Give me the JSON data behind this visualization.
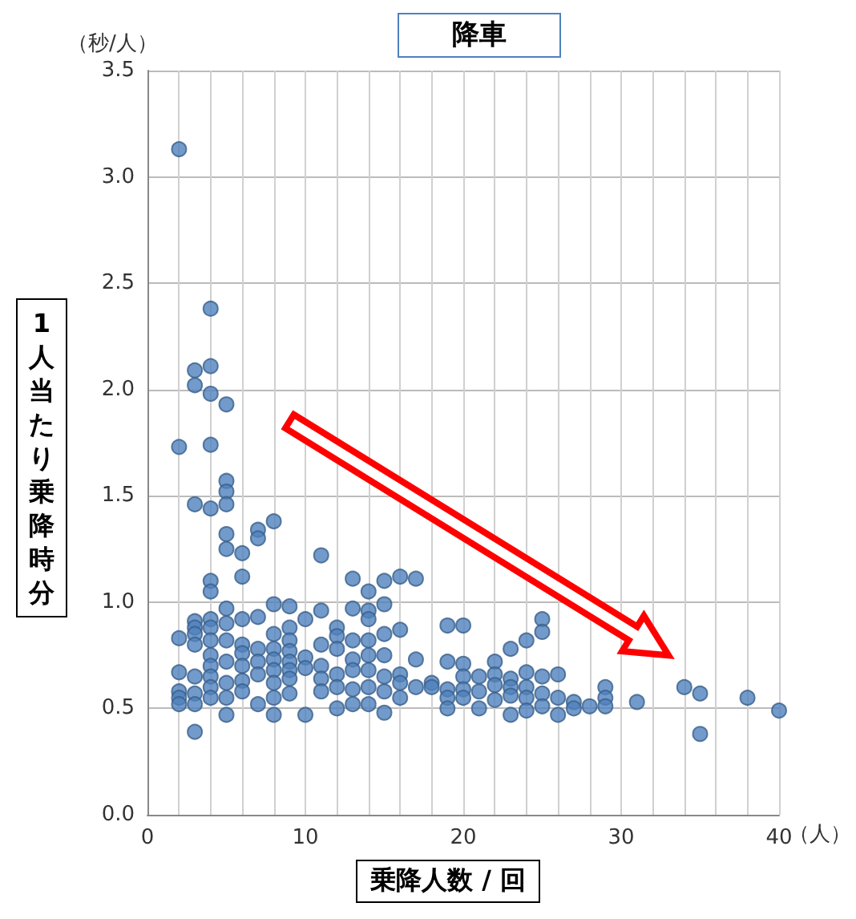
{
  "chart_data": {
    "type": "scatter",
    "title": "降車",
    "xlabel": "乗降人数 / 回",
    "ylabel": "1人当たり乗降時分",
    "annotations": [
      "（秒/人）",
      "（人）"
    ],
    "x": [
      2,
      2,
      2,
      2,
      2,
      2,
      2,
      3,
      3,
      3,
      3,
      3,
      3,
      3,
      3,
      3,
      3,
      3,
      4,
      4,
      4,
      4,
      4,
      4,
      4,
      4,
      4,
      4,
      4,
      4,
      4,
      4,
      4,
      5,
      5,
      5,
      5,
      5,
      5,
      5,
      5,
      5,
      5,
      5,
      5,
      5,
      6,
      6,
      6,
      6,
      6,
      6,
      6,
      6,
      7,
      7,
      7,
      7,
      7,
      7,
      7,
      8,
      8,
      8,
      8,
      8,
      8,
      8,
      8,
      8,
      9,
      9,
      9,
      9,
      9,
      9,
      9,
      9,
      10,
      10,
      10,
      10,
      11,
      11,
      11,
      11,
      11,
      11,
      12,
      12,
      12,
      12,
      12,
      12,
      13,
      13,
      13,
      13,
      13,
      13,
      13,
      14,
      14,
      14,
      14,
      14,
      14,
      14,
      14,
      15,
      15,
      15,
      15,
      15,
      15,
      15,
      16,
      16,
      16,
      16,
      16,
      17,
      17,
      17,
      18,
      18,
      19,
      19,
      19,
      19,
      19,
      20,
      20,
      20,
      20,
      20,
      21,
      21,
      21,
      22,
      22,
      22,
      22,
      23,
      23,
      23,
      23,
      23,
      24,
      24,
      24,
      24,
      24,
      25,
      25,
      25,
      25,
      25,
      26,
      26,
      26,
      27,
      27,
      28,
      29,
      29,
      29,
      31,
      34,
      35,
      35,
      38,
      40
    ],
    "values": [
      3.13,
      1.73,
      0.83,
      0.67,
      0.58,
      0.55,
      0.52,
      2.09,
      2.02,
      1.46,
      0.91,
      0.88,
      0.85,
      0.8,
      0.65,
      0.57,
      0.52,
      0.39,
      2.38,
      2.11,
      1.98,
      1.74,
      1.44,
      1.1,
      1.05,
      0.92,
      0.88,
      0.82,
      0.75,
      0.7,
      0.65,
      0.6,
      0.55,
      1.93,
      1.57,
      1.52,
      1.46,
      1.32,
      1.25,
      0.97,
      0.9,
      0.82,
      0.72,
      0.62,
      0.55,
      0.47,
      1.23,
      1.12,
      0.92,
      0.8,
      0.76,
      0.7,
      0.63,
      0.58,
      1.34,
      1.3,
      0.93,
      0.78,
      0.72,
      0.66,
      0.52,
      1.38,
      0.99,
      0.85,
      0.78,
      0.73,
      0.68,
      0.62,
      0.55,
      0.47,
      0.98,
      0.88,
      0.82,
      0.77,
      0.72,
      0.68,
      0.64,
      0.57,
      0.92,
      0.74,
      0.69,
      0.47,
      1.22,
      0.96,
      0.8,
      0.7,
      0.64,
      0.58,
      0.88,
      0.84,
      0.78,
      0.66,
      0.6,
      0.5,
      1.11,
      0.97,
      0.82,
      0.73,
      0.68,
      0.59,
      0.52,
      1.05,
      0.96,
      0.92,
      0.82,
      0.75,
      0.68,
      0.6,
      0.52,
      1.1,
      0.99,
      0.85,
      0.75,
      0.65,
      0.58,
      0.48,
      1.12,
      0.87,
      0.66,
      0.62,
      0.55,
      1.11,
      0.73,
      0.6,
      0.62,
      0.6,
      0.89,
      0.72,
      0.59,
      0.55,
      0.5,
      0.89,
      0.71,
      0.65,
      0.59,
      0.55,
      0.65,
      0.58,
      0.5,
      0.72,
      0.66,
      0.61,
      0.54,
      0.78,
      0.64,
      0.6,
      0.56,
      0.47,
      0.82,
      0.67,
      0.6,
      0.55,
      0.49,
      0.92,
      0.86,
      0.65,
      0.57,
      0.51,
      0.66,
      0.55,
      0.47,
      0.53,
      0.5,
      0.51,
      0.6,
      0.55,
      0.51,
      0.53,
      0.6,
      0.57,
      0.38,
      0.55,
      0.49
    ],
    "color": "#4f81bd",
    "marker": "circle",
    "xlim": [
      0,
      40
    ],
    "xticks": [
      0,
      10,
      20,
      30,
      40
    ],
    "ylim": [
      0,
      3.5
    ],
    "yticks": [
      {
        "value": 0,
        "label": "0.0"
      },
      {
        "value": 0.5,
        "label": "0.5"
      },
      {
        "value": 1,
        "label": "1.0"
      },
      {
        "value": 1.5,
        "label": "1.5"
      },
      {
        "value": 2,
        "label": "2.0"
      },
      {
        "value": 2.5,
        "label": "2.5"
      },
      {
        "value": 3,
        "label": "3.0"
      },
      {
        "value": 3.5,
        "label": "3.5"
      }
    ],
    "grid": true
  }
}
